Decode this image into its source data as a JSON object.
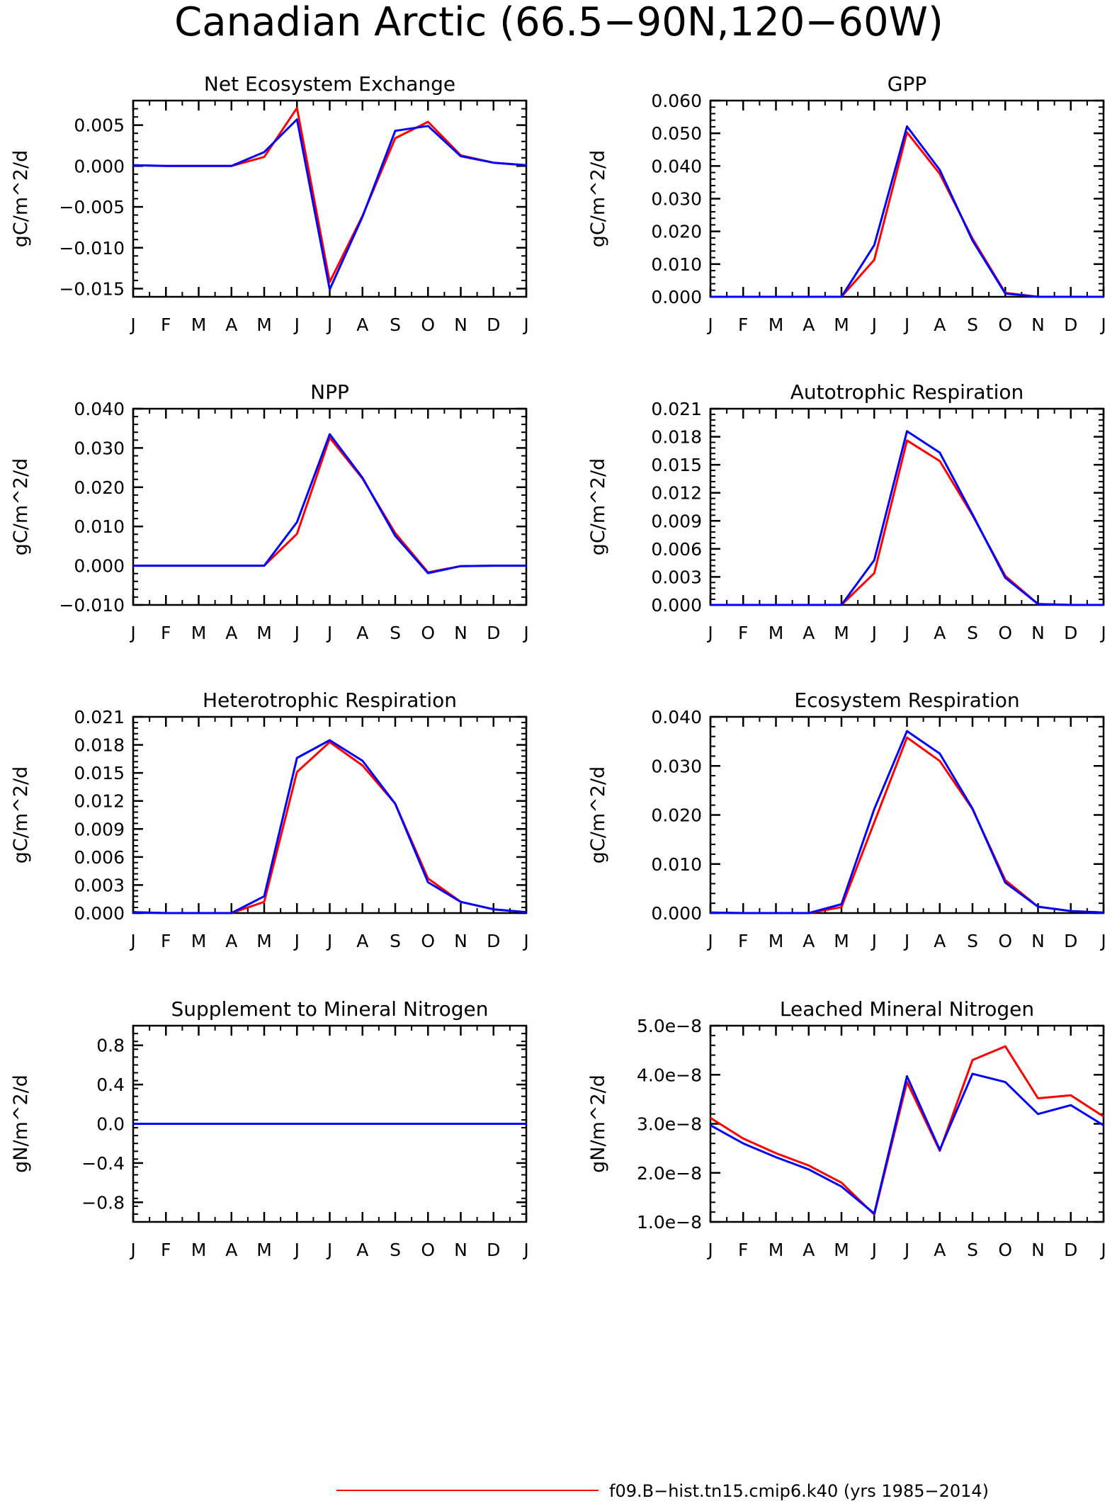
{
  "title": "Canadian Arctic (66.5−90N,120−60W)",
  "legend": {
    "entries": [
      {
        "label": "f09.B−hist.tn15.cmip6.k40 (yrs 1985−2014)",
        "color": "#ff0000"
      }
    ],
    "extra_series_color": "#0000ff"
  },
  "colors": {
    "series_1": "#ff0000",
    "series_2": "#0000ff"
  },
  "chart_data": [
    {
      "type": "line",
      "title": "Net Ecosystem Exchange",
      "ylabel": "gC/m^2/d",
      "x": [
        "J",
        "F",
        "M",
        "A",
        "M",
        "J",
        "J",
        "A",
        "S",
        "O",
        "N",
        "D",
        "J"
      ],
      "ylim": [
        -0.016,
        0.008
      ],
      "yticks": [
        0.005,
        0.0,
        -0.005,
        -0.01,
        -0.015
      ],
      "ytick_labels": [
        "0.005",
        "0.000",
        "−0.005",
        "−0.010",
        "−0.015"
      ],
      "series": [
        {
          "color": "#ff0000",
          "values": [
            0.0001,
            0.0,
            0.0,
            0.0,
            0.0011,
            0.0071,
            -0.0142,
            -0.0061,
            0.0034,
            0.0054,
            0.0013,
            0.0004,
            0.0001
          ]
        },
        {
          "color": "#0000ff",
          "values": [
            0.0001,
            0.0,
            0.0,
            0.0,
            0.0017,
            0.0057,
            -0.0151,
            -0.0062,
            0.0043,
            0.0049,
            0.0012,
            0.0004,
            0.0001
          ]
        }
      ]
    },
    {
      "type": "line",
      "title": "GPP",
      "ylabel": "gC/m^2/d",
      "x": [
        "J",
        "F",
        "M",
        "A",
        "M",
        "J",
        "J",
        "A",
        "S",
        "O",
        "N",
        "D",
        "J"
      ],
      "ylim": [
        0.0,
        0.06
      ],
      "yticks": [
        0.06,
        0.05,
        0.04,
        0.03,
        0.02,
        0.01,
        0.0
      ],
      "ytick_labels": [
        "0.060",
        "0.050",
        "0.040",
        "0.030",
        "0.020",
        "0.010",
        "0.000"
      ],
      "series": [
        {
          "color": "#ff0000",
          "values": [
            0.0,
            0.0,
            0.0,
            0.0,
            0.0,
            0.0113,
            0.0503,
            0.0376,
            0.0178,
            0.0012,
            0.0,
            0.0,
            0.0
          ]
        },
        {
          "color": "#0000ff",
          "values": [
            0.0,
            0.0,
            0.0,
            0.0,
            0.0,
            0.0158,
            0.0521,
            0.0388,
            0.0172,
            0.001,
            0.0,
            0.0,
            0.0
          ]
        }
      ]
    },
    {
      "type": "line",
      "title": "NPP",
      "ylabel": "gC/m^2/d",
      "x": [
        "J",
        "F",
        "M",
        "A",
        "M",
        "J",
        "J",
        "A",
        "S",
        "O",
        "N",
        "D",
        "J"
      ],
      "ylim": [
        -0.01,
        0.04
      ],
      "yticks": [
        0.04,
        0.03,
        0.02,
        0.01,
        0.0,
        -0.01
      ],
      "ytick_labels": [
        "0.040",
        "0.030",
        "0.020",
        "0.010",
        "0.000",
        "−0.010"
      ],
      "series": [
        {
          "color": "#ff0000",
          "values": [
            0.0,
            0.0,
            0.0,
            0.0,
            0.0,
            0.0081,
            0.0326,
            0.0222,
            0.0083,
            -0.0017,
            -0.0001,
            0.0,
            0.0
          ]
        },
        {
          "color": "#0000ff",
          "values": [
            0.0,
            0.0,
            0.0,
            0.0,
            0.0,
            0.0111,
            0.0335,
            0.0224,
            0.0076,
            -0.0019,
            -0.0001,
            0.0,
            0.0
          ]
        }
      ]
    },
    {
      "type": "line",
      "title": "Autotrophic Respiration",
      "ylabel": "gC/m^2/d",
      "x": [
        "J",
        "F",
        "M",
        "A",
        "M",
        "J",
        "J",
        "A",
        "S",
        "O",
        "N",
        "D",
        "J"
      ],
      "ylim": [
        0.0,
        0.021
      ],
      "yticks": [
        0.021,
        0.018,
        0.015,
        0.012,
        0.009,
        0.006,
        0.003,
        0.0
      ],
      "ytick_labels": [
        "0.021",
        "0.018",
        "0.015",
        "0.012",
        "0.009",
        "0.006",
        "0.003",
        "0.000"
      ],
      "series": [
        {
          "color": "#ff0000",
          "values": [
            0.0,
            0.0,
            0.0,
            0.0,
            0.0,
            0.0034,
            0.0176,
            0.0154,
            0.0096,
            0.0031,
            0.0001,
            0.0,
            0.0
          ]
        },
        {
          "color": "#0000ff",
          "values": [
            0.0,
            0.0,
            0.0,
            0.0,
            0.0,
            0.0048,
            0.0186,
            0.0163,
            0.0097,
            0.0029,
            0.0001,
            0.0,
            0.0
          ]
        }
      ]
    },
    {
      "type": "line",
      "title": "Heterotrophic Respiration",
      "ylabel": "gC/m^2/d",
      "x": [
        "J",
        "F",
        "M",
        "A",
        "M",
        "J",
        "J",
        "A",
        "S",
        "O",
        "N",
        "D",
        "J"
      ],
      "ylim": [
        0.0,
        0.021
      ],
      "yticks": [
        0.021,
        0.018,
        0.015,
        0.012,
        0.009,
        0.006,
        0.003,
        0.0
      ],
      "ytick_labels": [
        "0.021",
        "0.018",
        "0.015",
        "0.012",
        "0.009",
        "0.006",
        "0.003",
        "0.000"
      ],
      "series": [
        {
          "color": "#ff0000",
          "values": [
            0.0001,
            0.0,
            0.0,
            0.0,
            0.0012,
            0.0151,
            0.0183,
            0.0158,
            0.0117,
            0.0037,
            0.0012,
            0.0004,
            0.0001
          ]
        },
        {
          "color": "#0000ff",
          "values": [
            0.0001,
            0.0,
            0.0,
            0.0,
            0.0018,
            0.0166,
            0.0185,
            0.0163,
            0.0117,
            0.0033,
            0.0012,
            0.0004,
            0.0001
          ]
        }
      ]
    },
    {
      "type": "line",
      "title": "Ecosystem Respiration",
      "ylabel": "gC/m^2/d",
      "x": [
        "J",
        "F",
        "M",
        "A",
        "M",
        "J",
        "J",
        "A",
        "S",
        "O",
        "N",
        "D",
        "J"
      ],
      "ylim": [
        0.0,
        0.04
      ],
      "yticks": [
        0.04,
        0.03,
        0.02,
        0.01,
        0.0
      ],
      "ytick_labels": [
        "0.040",
        "0.030",
        "0.020",
        "0.010",
        "0.000"
      ],
      "series": [
        {
          "color": "#ff0000",
          "values": [
            0.0001,
            0.0,
            0.0,
            0.0,
            0.0012,
            0.0185,
            0.0358,
            0.031,
            0.0212,
            0.0067,
            0.0013,
            0.0004,
            0.0001
          ]
        },
        {
          "color": "#0000ff",
          "values": [
            0.0001,
            0.0,
            0.0,
            0.0,
            0.0018,
            0.0212,
            0.0371,
            0.0325,
            0.0213,
            0.0062,
            0.0013,
            0.0004,
            0.0001
          ]
        }
      ]
    },
    {
      "type": "line",
      "title": "Supplement to Mineral Nitrogen",
      "ylabel": "gN/m^2/d",
      "x": [
        "J",
        "F",
        "M",
        "A",
        "M",
        "J",
        "J",
        "A",
        "S",
        "O",
        "N",
        "D",
        "J"
      ],
      "ylim": [
        -1.0,
        1.0
      ],
      "yticks": [
        0.8,
        0.4,
        0.0,
        -0.4,
        -0.8
      ],
      "ytick_labels": [
        "0.8",
        "0.4",
        "0.0",
        "−0.4",
        "−0.8"
      ],
      "series": [
        {
          "color": "#ff0000",
          "values": [
            0,
            0,
            0,
            0,
            0,
            0,
            0,
            0,
            0,
            0,
            0,
            0,
            0
          ]
        },
        {
          "color": "#0000ff",
          "values": [
            0,
            0,
            0,
            0,
            0,
            0,
            0,
            0,
            0,
            0,
            0,
            0,
            0
          ]
        }
      ]
    },
    {
      "type": "line",
      "title": "Leached Mineral Nitrogen",
      "ylabel": "gN/m^2/d",
      "x": [
        "J",
        "F",
        "M",
        "A",
        "M",
        "J",
        "J",
        "A",
        "S",
        "O",
        "N",
        "D",
        "J"
      ],
      "ylim": [
        1e-08,
        5e-08
      ],
      "yticks": [
        5e-08,
        4e-08,
        3e-08,
        2e-08,
        1e-08
      ],
      "ytick_labels": [
        "5.0e−8",
        "4.0e−8",
        "3.0e−8",
        "2.0e−8",
        "1.0e−8"
      ],
      "series": [
        {
          "color": "#ff0000",
          "values": [
            3.12e-08,
            2.7e-08,
            2.4e-08,
            2.15e-08,
            1.8e-08,
            1.15e-08,
            3.85e-08,
            2.45e-08,
            4.3e-08,
            4.58e-08,
            3.52e-08,
            3.58e-08,
            3.15e-08
          ]
        },
        {
          "color": "#0000ff",
          "values": [
            2.97e-08,
            2.6e-08,
            2.32e-08,
            2.07e-08,
            1.72e-08,
            1.17e-08,
            3.97e-08,
            2.47e-08,
            4.02e-08,
            3.85e-08,
            3.2e-08,
            3.38e-08,
            2.97e-08
          ]
        }
      ]
    }
  ]
}
